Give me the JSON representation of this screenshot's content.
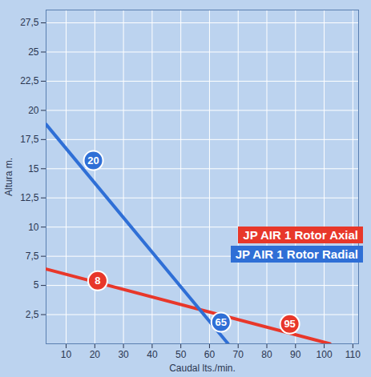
{
  "chart_data": {
    "type": "line",
    "x_label": "Caudal lts./min.",
    "y_label": "Altura m.",
    "xlim": [
      3,
      112
    ],
    "ylim": [
      0,
      28.6
    ],
    "xticks": [
      10,
      20,
      30,
      40,
      50,
      60,
      70,
      80,
      90,
      100,
      110
    ],
    "yticks": [
      {
        "value": 2.5,
        "label": "2,5"
      },
      5,
      {
        "value": 7.5,
        "label": "7,5"
      },
      10,
      {
        "value": 12.5,
        "label": "12,5"
      },
      15,
      {
        "value": 17.5,
        "label": "17,5"
      },
      20,
      {
        "value": 22.5,
        "label": "22,5"
      },
      25,
      {
        "value": 27.5,
        "label": "27,5"
      }
    ],
    "grid": true,
    "legend": "right",
    "series": [
      {
        "name": "JP AIR 1 Rotor Axial",
        "color": "#e8372a",
        "x": [
          3,
          102
        ],
        "values": [
          6.4,
          0
        ]
      },
      {
        "name": "JP AIR 1 Rotor Radial",
        "color": "#2f6fd6",
        "x": [
          3,
          66.5
        ],
        "values": [
          18.8,
          0
        ]
      }
    ],
    "annotations": [
      {
        "text": "20",
        "x": 19.5,
        "y": 15.7,
        "series": "JP AIR 1 Rotor Radial"
      },
      {
        "text": "8",
        "x": 21,
        "y": 5.4,
        "series": "JP AIR 1 Rotor Axial"
      },
      {
        "text": "65",
        "x": 64,
        "y": 1.85,
        "series": "JP AIR 1 Rotor Radial"
      },
      {
        "text": "95",
        "x": 88,
        "y": 1.7,
        "series": "JP AIR 1 Rotor Axial"
      }
    ]
  }
}
